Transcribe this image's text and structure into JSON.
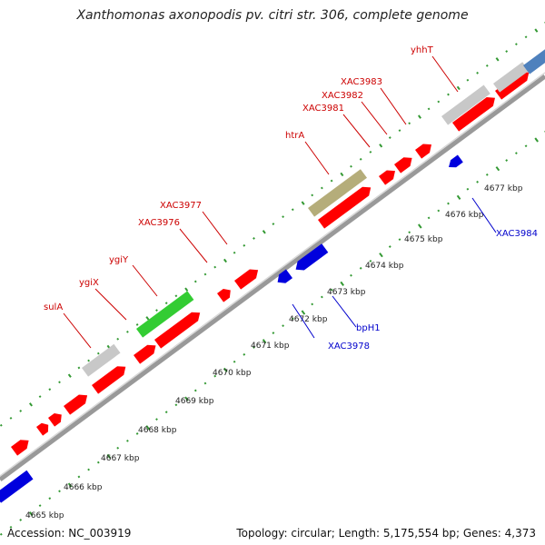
{
  "title": "Xanthomonas axonopodis pv. citri str. 306, complete genome",
  "footer": {
    "accession": "Accession: NC_003919",
    "summary": "Topology: circular; Length: 5,175,554 bp; Genes: 4,373"
  },
  "colors": {
    "forward_cds": "#ff0000",
    "reverse_cds": "#0000dd",
    "rna_gene": "#c8c8c8",
    "highlight_gene": "#33cc33",
    "htrA_gene": "#b5ad7a",
    "blue_gray_gene": "#4f81bd",
    "tick": "#339933",
    "backbone": "#888888",
    "forward_label": "#cc0000",
    "reverse_label": "#0000cc"
  },
  "kbp_labels": [
    "4665 kbp",
    "4666 kbp",
    "4667 kbp",
    "4668 kbp",
    "4669 kbp",
    "4670 kbp",
    "4671 kbp",
    "4672 kbp",
    "4673 kbp",
    "4674 kbp",
    "4675 kbp",
    "4676 kbp",
    "4677 kbp"
  ],
  "forward_gene_labels": [
    "sulA",
    "ygiX",
    "ygiY",
    "XAC3976",
    "XAC3977",
    "htrA",
    "XAC3981",
    "XAC3982",
    "XAC3983",
    "yhhT"
  ],
  "reverse_gene_labels": [
    "XAC3978",
    "bpH1",
    "XAC3984"
  ]
}
